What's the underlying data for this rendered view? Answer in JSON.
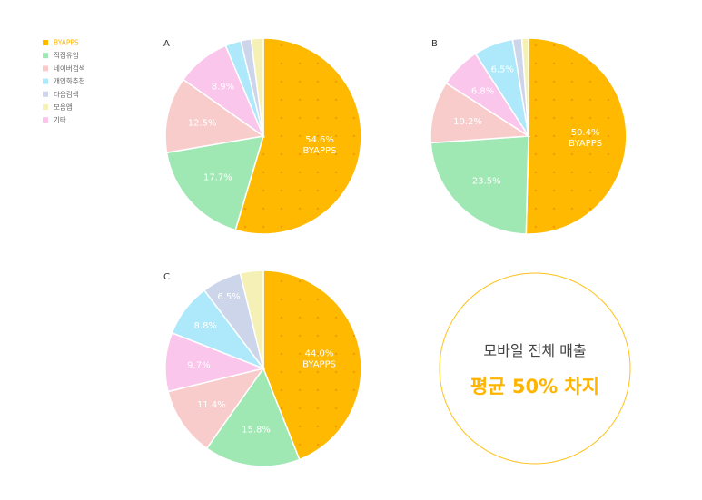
{
  "colors": {
    "BYAPPS": "#ffb900",
    "직접유입": "#9fe8b3",
    "네이버검색": "#f9cccc",
    "개인화추천": "#aee9fb",
    "다음검색": "#cdd5ea",
    "모음앱": "#f5f0b5",
    "기타": "#fbc6ec",
    "highlight": "#ffb400",
    "dot": "#f5a300"
  },
  "legend": [
    {
      "label": "BYAPPS",
      "highlight": true
    },
    {
      "label": "직접유입"
    },
    {
      "label": "네이버검색"
    },
    {
      "label": "개인화추천"
    },
    {
      "label": "다음검색"
    },
    {
      "label": "모음앱"
    },
    {
      "label": "기타"
    }
  ],
  "chart_data": [
    {
      "type": "pie",
      "title": "A",
      "slices": [
        {
          "name": "BYAPPS",
          "value": 54.6,
          "label": "54.6%",
          "sublabel": "BYAPPS"
        },
        {
          "name": "직접유입",
          "value": 17.7,
          "label": "17.7%"
        },
        {
          "name": "네이버검색",
          "value": 12.5,
          "label": "12.5%"
        },
        {
          "name": "기타",
          "value": 8.9,
          "label": "8.9%"
        },
        {
          "name": "개인화추천",
          "value": 2.6,
          "label": ""
        },
        {
          "name": "다음검색",
          "value": 1.7,
          "label": ""
        },
        {
          "name": "모음앱",
          "value": 2.0,
          "label": ""
        }
      ]
    },
    {
      "type": "pie",
      "title": "B",
      "slices": [
        {
          "name": "BYAPPS",
          "value": 50.4,
          "label": "50.4%",
          "sublabel": "BYAPPS"
        },
        {
          "name": "직접유입",
          "value": 23.5,
          "label": "23.5%"
        },
        {
          "name": "네이버검색",
          "value": 10.2,
          "label": "10.2%"
        },
        {
          "name": "기타",
          "value": 6.8,
          "label": "6.8%"
        },
        {
          "name": "개인화추천",
          "value": 6.5,
          "label": "6.5%"
        },
        {
          "name": "다음검색",
          "value": 1.5,
          "label": ""
        },
        {
          "name": "모음앱",
          "value": 1.1,
          "label": ""
        }
      ]
    },
    {
      "type": "pie",
      "title": "C",
      "slices": [
        {
          "name": "BYAPPS",
          "value": 44.0,
          "label": "44.0%",
          "sublabel": "BYAPPS"
        },
        {
          "name": "직접유입",
          "value": 15.8,
          "label": "15.8%"
        },
        {
          "name": "네이버검색",
          "value": 11.4,
          "label": "11.4%"
        },
        {
          "name": "기타",
          "value": 9.7,
          "label": "9.7%"
        },
        {
          "name": "개인화추천",
          "value": 8.8,
          "label": "8.8%"
        },
        {
          "name": "다음검색",
          "value": 6.5,
          "label": "6.5%"
        },
        {
          "name": "모음앱",
          "value": 3.8,
          "label": ""
        }
      ]
    }
  ],
  "callout": {
    "line1": "모바일 전체 매출",
    "line2": "평균 50% 차지"
  }
}
